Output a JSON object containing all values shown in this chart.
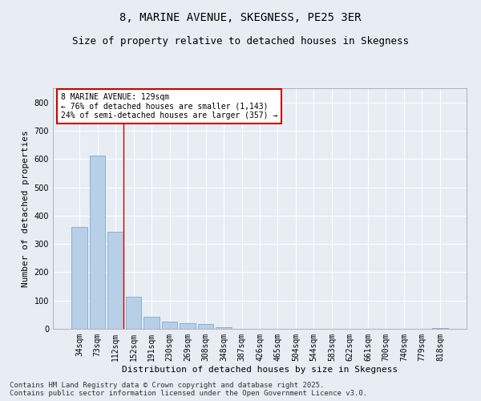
{
  "title": "8, MARINE AVENUE, SKEGNESS, PE25 3ER",
  "subtitle": "Size of property relative to detached houses in Skegness",
  "xlabel": "Distribution of detached houses by size in Skegness",
  "ylabel": "Number of detached properties",
  "categories": [
    "34sqm",
    "73sqm",
    "112sqm",
    "152sqm",
    "191sqm",
    "230sqm",
    "269sqm",
    "308sqm",
    "348sqm",
    "387sqm",
    "426sqm",
    "465sqm",
    "504sqm",
    "544sqm",
    "583sqm",
    "622sqm",
    "661sqm",
    "700sqm",
    "740sqm",
    "779sqm",
    "818sqm"
  ],
  "values": [
    360,
    612,
    343,
    112,
    42,
    25,
    20,
    16,
    5,
    1,
    0,
    0,
    0,
    0,
    0,
    0,
    0,
    0,
    0,
    0,
    2
  ],
  "bar_color": "#b8cfe8",
  "bar_edge_color": "#7aaad0",
  "background_color": "#e8edf4",
  "grid_color": "#ffffff",
  "vline_color": "#cc0000",
  "annotation_text": "8 MARINE AVENUE: 129sqm\n← 76% of detached houses are smaller (1,143)\n24% of semi-detached houses are larger (357) →",
  "annotation_box_color": "#ffffff",
  "annotation_box_edge": "#cc0000",
  "footer_text": "Contains HM Land Registry data © Crown copyright and database right 2025.\nContains public sector information licensed under the Open Government Licence v3.0.",
  "ylim": [
    0,
    850
  ],
  "yticks": [
    0,
    100,
    200,
    300,
    400,
    500,
    600,
    700,
    800
  ],
  "title_fontsize": 10,
  "subtitle_fontsize": 9,
  "axis_label_fontsize": 8,
  "tick_fontsize": 7,
  "annotation_fontsize": 7,
  "footer_fontsize": 6.5
}
